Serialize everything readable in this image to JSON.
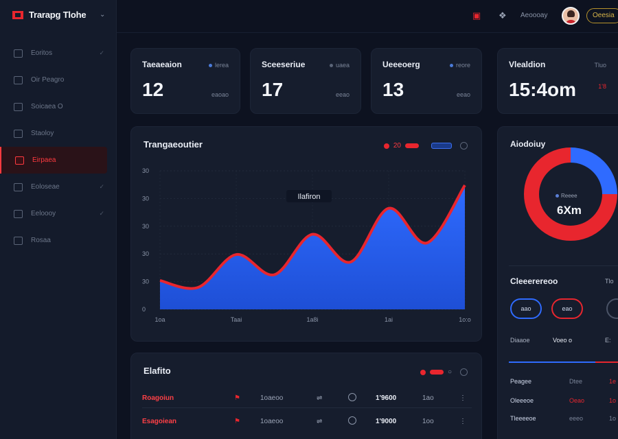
{
  "app": {
    "title": "Trarapg Tlohe"
  },
  "sidebar": {
    "items": [
      {
        "label": "Eoritos",
        "active": false
      },
      {
        "label": "Oir Peagro",
        "active": false
      },
      {
        "label": "Soicaea O",
        "active": false
      },
      {
        "label": "Staoloy",
        "active": false
      },
      {
        "label": "Eirpaea",
        "active": true
      },
      {
        "label": "Eoloseae",
        "active": false
      },
      {
        "label": "Eeloooy",
        "active": false
      },
      {
        "label": "Rosaa",
        "active": false
      }
    ]
  },
  "header": {
    "label": "Aeoooay",
    "pill": "Oeesia"
  },
  "stats": [
    {
      "title": "Taeaeaion",
      "tag": "lerea",
      "value": "12",
      "sub": "eaoao"
    },
    {
      "title": "Sceeseriue",
      "tag": "uaea",
      "value": "17",
      "sub": "eeao"
    },
    {
      "title": "Ueeeoerg",
      "tag": "reore",
      "value": "13",
      "sub": "eeao"
    },
    {
      "title": "Vlealdion",
      "tag": "Tluo",
      "value": "15:4om",
      "sub": "1'8"
    }
  ],
  "chart_card": {
    "title": "Trangaeoutier",
    "legend_value": "20",
    "tooltip": "Ilafiron"
  },
  "chart_data": {
    "type": "area",
    "x_ticks": [
      "1oa",
      "Taai",
      "1a8i",
      "1ai",
      "1o:o"
    ],
    "y_ticks": [
      "0",
      "30",
      "30",
      "30",
      "30",
      "30"
    ],
    "values": [
      5,
      3.8,
      9.5,
      6,
      13,
      8.2,
      17.5,
      11.5,
      21.5
    ],
    "ylim": [
      0,
      24
    ],
    "colors": {
      "fill_top": "#2f6bff",
      "fill_bottom": "#1e4fd6",
      "stroke": "#e8262e"
    }
  },
  "table_card": {
    "title": "Elafito",
    "rows": [
      {
        "name": "Roagoiun",
        "id": "1oaeoo",
        "value": "1'9600",
        "tail": "1ao"
      },
      {
        "name": "Esagoiean",
        "id": "1oaeoo",
        "value": "1'9000",
        "tail": "1oo"
      }
    ]
  },
  "activity_card": {
    "title": "Aiodoiuy",
    "center_label": "Reeee",
    "center_value": "6Xm",
    "donut": [
      {
        "name": "red",
        "value": 75,
        "color": "#e8262e"
      },
      {
        "name": "blue",
        "value": 25,
        "color": "#2f6bff"
      }
    ],
    "section_title": "Cleeerereoo",
    "section_tag": "Tlo",
    "rings": [
      "aao",
      "eao"
    ],
    "ring_labels": [
      "Diaaoe",
      "Voeo o",
      "E:"
    ],
    "list": [
      {
        "label": "Peagee",
        "a": "Dtee",
        "b": "1e"
      },
      {
        "label": "Oleeeoe",
        "a": "Oeao",
        "b": "1o"
      },
      {
        "label": "Tleeeeoe",
        "a": "eeeo",
        "b": "1o"
      }
    ]
  }
}
